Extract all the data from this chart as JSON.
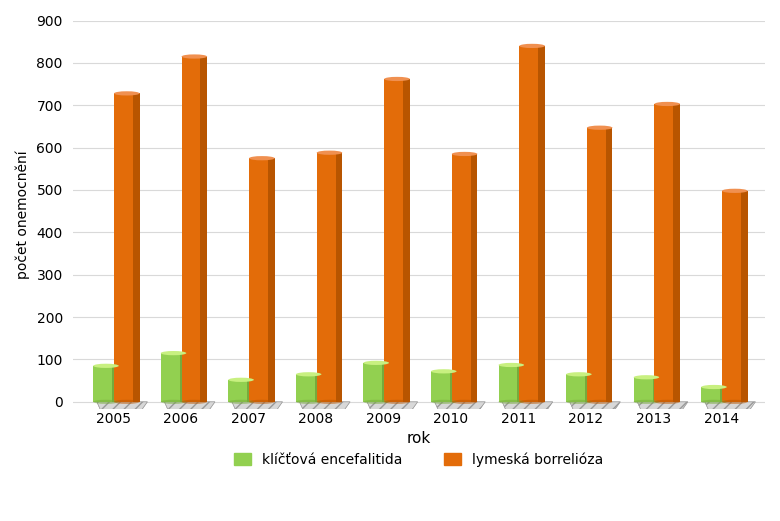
{
  "years": [
    2005,
    2006,
    2007,
    2008,
    2009,
    2010,
    2011,
    2012,
    2013,
    2014
  ],
  "kliste": [
    85,
    115,
    52,
    65,
    92,
    72,
    87,
    65,
    58,
    35
  ],
  "lyme": [
    728,
    815,
    575,
    588,
    762,
    585,
    840,
    647,
    703,
    498
  ],
  "kliste_color": "#92d050",
  "kliste_color_dark": "#76aa3c",
  "kliste_color_top": "#c8f080",
  "lyme_color": "#e36c09",
  "lyme_color_dark": "#b85500",
  "lyme_color_top": "#f09050",
  "ylabel": "počet onemocnění",
  "xlabel": "rok",
  "ylim": [
    0,
    900
  ],
  "yticks": [
    0,
    100,
    200,
    300,
    400,
    500,
    600,
    700,
    800,
    900
  ],
  "legend_kliste": "klíčťová encefalitida",
  "legend_lyme": "lymeská borrelióza",
  "bar_width": 0.28,
  "bg_color": "#ffffff",
  "grid_color": "#d9d9d9",
  "platform_color": "#c8c8c8",
  "platform_hatch_color": "#aaaaaa"
}
